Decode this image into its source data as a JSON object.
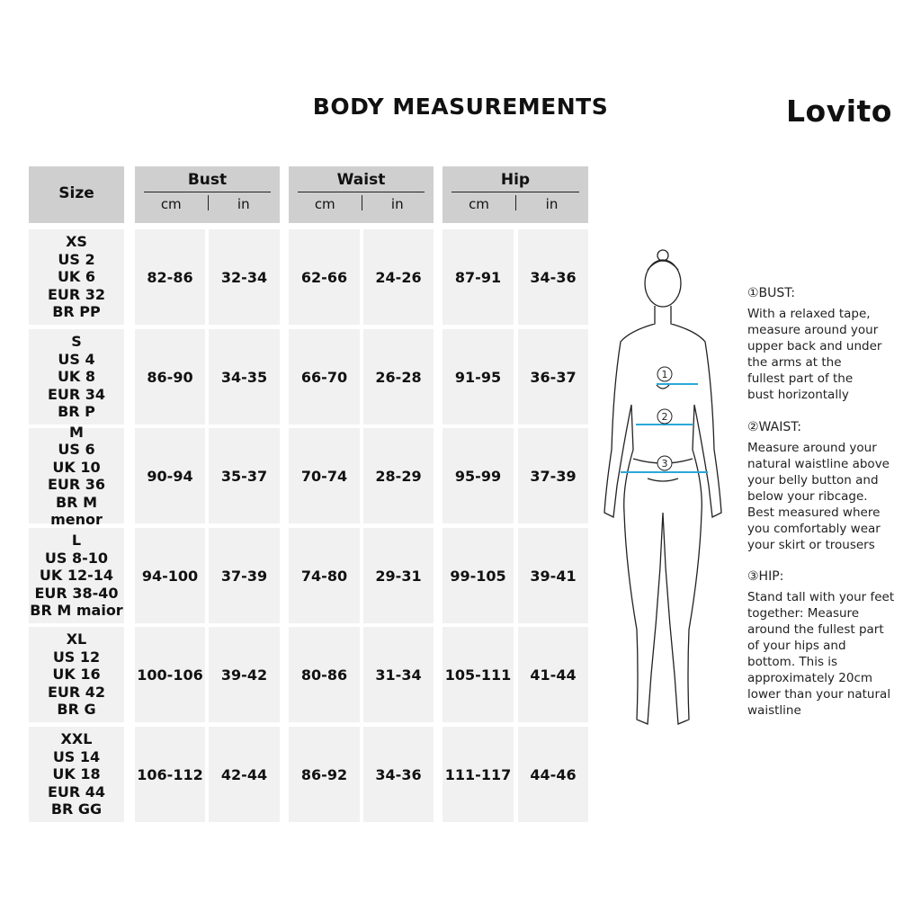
{
  "title": "BODY MEASUREMENTS",
  "logo": "Lovito",
  "headers": {
    "size": "Size",
    "bust": "Bust",
    "waist": "Waist",
    "hip": "Hip",
    "cm": "cm",
    "in": "in"
  },
  "rows": [
    {
      "size": [
        "XS",
        "US 2",
        "UK 6",
        "EUR 32",
        "BR PP"
      ],
      "values": [
        "82-86",
        "32-34",
        "62-66",
        "24-26",
        "87-91",
        "34-36"
      ]
    },
    {
      "size": [
        "S",
        "US 4",
        "UK 8",
        "EUR 34",
        "BR P"
      ],
      "values": [
        "86-90",
        "34-35",
        "66-70",
        "26-28",
        "91-95",
        "36-37"
      ]
    },
    {
      "size": [
        "M",
        "US 6",
        "UK 10",
        "EUR 36",
        "BR M menor"
      ],
      "values": [
        "90-94",
        "35-37",
        "70-74",
        "28-29",
        "95-99",
        "37-39"
      ]
    },
    {
      "size": [
        "L",
        "US 8-10",
        "UK 12-14",
        "EUR 38-40",
        "BR M maior"
      ],
      "values": [
        "94-100",
        "37-39",
        "74-80",
        "29-31",
        "99-105",
        "39-41"
      ]
    },
    {
      "size": [
        "XL",
        "US 12",
        "UK 16",
        "EUR 42",
        "BR G"
      ],
      "values": [
        "100-106",
        "39-42",
        "80-86",
        "31-34",
        "105-111",
        "41-44"
      ]
    },
    {
      "size": [
        "XXL",
        "US 14",
        "UK 18",
        "EUR 44",
        "BR GG"
      ],
      "values": [
        "106-112",
        "42-44",
        "86-92",
        "34-36",
        "111-117",
        "44-46"
      ]
    }
  ],
  "figure": {
    "markers": [
      "1",
      "2",
      "3"
    ],
    "tape_color": "#29a8d8"
  },
  "guide": [
    {
      "title": "①BUST:",
      "text": "With a relaxed tape, measure around your upper back and under the arms at the fullest part of the bust horizontally"
    },
    {
      "title": "②WAIST:",
      "text": "Measure around your natural waistline above your belly button and below your ribcage. Best measured where you comfortably wear your skirt or trousers"
    },
    {
      "title": "③HIP:",
      "text": "Stand tall with your feet together: Measure around the fullest part of your hips and bottom. This is approximately 20cm lower than your natural waistline"
    }
  ]
}
